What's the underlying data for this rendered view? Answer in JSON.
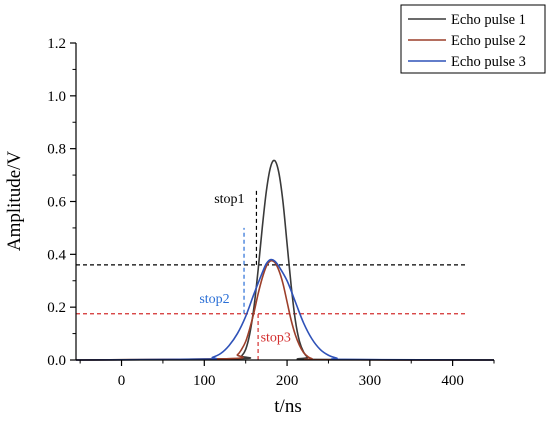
{
  "chart_data": {
    "type": "line",
    "xlabel": "t/ns",
    "ylabel": "Amplitude/V",
    "xlim": [
      -55,
      450
    ],
    "ylim": [
      0,
      1.2
    ],
    "x_ticks": [
      0,
      100,
      200,
      300,
      400
    ],
    "x_tick_labels": [
      "0",
      "100",
      "200",
      "300",
      "400"
    ],
    "y_ticks": [
      0.0,
      0.2,
      0.4,
      0.6,
      0.8,
      1.0,
      1.2
    ],
    "y_tick_labels": [
      "0.0",
      "0.2",
      "0.4",
      "0.6",
      "0.8",
      "1.0",
      "1.2"
    ],
    "grid": false,
    "legend_position": "top-right",
    "series": [
      {
        "name": "Echo pulse 1",
        "color": "#3a3a3a",
        "x": [
          140,
          145,
          150,
          155,
          160,
          165,
          170,
          175,
          180,
          185,
          190,
          195,
          200,
          205,
          210,
          215,
          220,
          225,
          230
        ],
        "y": [
          0.005,
          0.015,
          0.04,
          0.1,
          0.2,
          0.34,
          0.5,
          0.64,
          0.73,
          0.755,
          0.71,
          0.6,
          0.44,
          0.28,
          0.15,
          0.07,
          0.03,
          0.01,
          0.002
        ]
      },
      {
        "name": "Echo pulse 2",
        "color": "#9c3f2a",
        "x": [
          130,
          140,
          145,
          150,
          155,
          160,
          165,
          170,
          175,
          180,
          185,
          190,
          195,
          200,
          205,
          210,
          215,
          220,
          225,
          230,
          240
        ],
        "y": [
          0.005,
          0.02,
          0.04,
          0.07,
          0.12,
          0.18,
          0.25,
          0.31,
          0.355,
          0.375,
          0.37,
          0.34,
          0.29,
          0.22,
          0.15,
          0.095,
          0.055,
          0.028,
          0.013,
          0.005,
          0.001
        ]
      },
      {
        "name": "Echo pulse 3",
        "color": "#2f52b8",
        "x": [
          100,
          110,
          120,
          130,
          140,
          150,
          160,
          170,
          175,
          180,
          185,
          190,
          200,
          210,
          220,
          230,
          240,
          250,
          260,
          270
        ],
        "y": [
          0.003,
          0.01,
          0.025,
          0.055,
          0.1,
          0.165,
          0.25,
          0.33,
          0.365,
          0.38,
          0.375,
          0.355,
          0.3,
          0.22,
          0.14,
          0.08,
          0.04,
          0.018,
          0.007,
          0.002
        ]
      }
    ],
    "reference_lines": [
      {
        "orientation": "horizontal",
        "value": 0.36,
        "color": "#000000",
        "x_range": [
          -55,
          415
        ]
      },
      {
        "orientation": "horizontal",
        "value": 0.175,
        "color": "#d32f2f",
        "x_range": [
          -55,
          415
        ]
      },
      {
        "orientation": "vertical",
        "value": 163,
        "color": "#000000",
        "y_range": [
          0.36,
          0.65
        ]
      },
      {
        "orientation": "vertical",
        "value": 148,
        "color": "#2a6fd6",
        "y_range": [
          0.175,
          0.5
        ]
      },
      {
        "orientation": "vertical",
        "value": 165,
        "color": "#d32f2f",
        "y_range": [
          0.0,
          0.175
        ]
      }
    ],
    "annotations": [
      {
        "text": "stop1",
        "color": "#000000",
        "x": 112,
        "y": 0.595
      },
      {
        "text": "stop2",
        "color": "#2a6fd6",
        "x": 94,
        "y": 0.215
      },
      {
        "text": "stop3",
        "color": "#d32f2f",
        "x": 168,
        "y": 0.07
      }
    ]
  }
}
